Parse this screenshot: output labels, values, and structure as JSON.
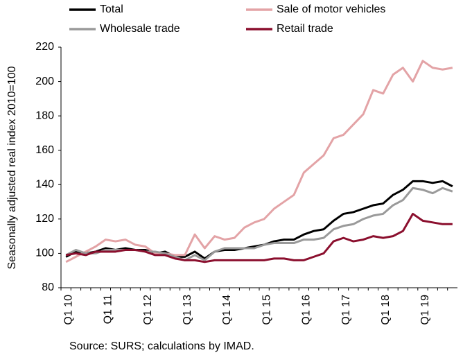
{
  "chart_data": {
    "type": "line",
    "y_label": "Seasonally adjusted real index 2010=100",
    "note": "Source: SURS; calculations by IMAD.",
    "categories": [
      "Q1 10",
      null,
      null,
      null,
      "Q1 11",
      null,
      null,
      null,
      "Q1 12",
      null,
      null,
      null,
      "Q1 13",
      null,
      null,
      null,
      "Q1 14",
      null,
      null,
      null,
      "Q1 15",
      null,
      null,
      null,
      "Q1 16",
      null,
      null,
      null,
      "Q1 17",
      null,
      null,
      null,
      "Q1 18",
      null,
      null,
      null,
      "Q1 19",
      null,
      null,
      null
    ],
    "series": [
      {
        "name": "Total",
        "color": "#000000",
        "values": [
          98,
          101,
          100,
          101,
          103,
          102,
          103,
          102,
          102,
          100,
          101,
          98,
          98,
          101,
          97,
          101,
          102,
          102,
          103,
          104,
          105,
          107,
          108,
          108,
          111,
          113,
          114,
          119,
          123,
          124,
          126,
          128,
          129,
          134,
          137,
          142,
          142,
          141,
          142,
          139
        ]
      },
      {
        "name": "Sale of motor vehicles",
        "color": "#e3a3a6",
        "values": [
          95,
          98,
          101,
          104,
          108,
          107,
          108,
          105,
          104,
          100,
          100,
          99,
          99,
          111,
          103,
          110,
          108,
          109,
          115,
          118,
          120,
          126,
          130,
          134,
          147,
          152,
          157,
          167,
          169,
          175,
          181,
          195,
          193,
          204,
          208,
          200,
          212,
          208,
          207,
          208
        ]
      },
      {
        "name": "Wholesale trade",
        "color": "#9a9a9a",
        "values": [
          99,
          102,
          100,
          100,
          102,
          102,
          102,
          102,
          101,
          101,
          100,
          98,
          96,
          99,
          96,
          101,
          103,
          103,
          103,
          103,
          105,
          106,
          106,
          106,
          108,
          108,
          109,
          114,
          116,
          117,
          120,
          122,
          123,
          128,
          131,
          138,
          137,
          135,
          138,
          136
        ]
      },
      {
        "name": "Retail trade",
        "color": "#8b0f2e",
        "values": [
          99,
          100,
          99,
          101,
          101,
          101,
          102,
          102,
          101,
          99,
          99,
          97,
          96,
          96,
          95,
          96,
          96,
          96,
          96,
          96,
          96,
          97,
          97,
          96,
          96,
          98,
          100,
          107,
          109,
          107,
          108,
          110,
          109,
          110,
          113,
          123,
          119,
          118,
          117,
          117
        ]
      }
    ],
    "ylim": [
      80,
      220
    ],
    "yticks": [
      80,
      100,
      120,
      140,
      160,
      180,
      200,
      220
    ]
  }
}
